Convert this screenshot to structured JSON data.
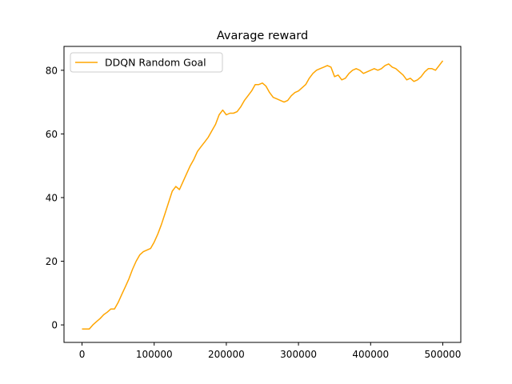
{
  "chart_data": {
    "type": "line",
    "title": "Avarage reward",
    "xlabel": "",
    "ylabel": "",
    "xlim": [
      -25000,
      525000
    ],
    "ylim": [
      -5.5,
      87.5
    ],
    "xticks": [
      0,
      100000,
      200000,
      300000,
      400000,
      500000
    ],
    "xtick_labels": [
      "0",
      "100000",
      "200000",
      "300000",
      "400000",
      "500000"
    ],
    "yticks": [
      0,
      20,
      40,
      60,
      80
    ],
    "ytick_labels": [
      "0",
      "20",
      "40",
      "60",
      "80"
    ],
    "grid": false,
    "legend_position": "top-left",
    "series": [
      {
        "name": "DDQN Random Goal",
        "color": "#ffa500",
        "x": [
          0,
          10000,
          15000,
          20000,
          25000,
          30000,
          35000,
          40000,
          45000,
          50000,
          55000,
          60000,
          65000,
          70000,
          75000,
          80000,
          85000,
          90000,
          95000,
          100000,
          105000,
          110000,
          115000,
          120000,
          125000,
          130000,
          135000,
          140000,
          145000,
          150000,
          155000,
          160000,
          165000,
          170000,
          175000,
          180000,
          185000,
          190000,
          195000,
          200000,
          205000,
          210000,
          215000,
          220000,
          225000,
          230000,
          235000,
          240000,
          245000,
          250000,
          255000,
          260000,
          265000,
          270000,
          275000,
          280000,
          285000,
          290000,
          295000,
          300000,
          305000,
          310000,
          315000,
          320000,
          325000,
          330000,
          335000,
          340000,
          345000,
          350000,
          355000,
          360000,
          365000,
          370000,
          375000,
          380000,
          385000,
          390000,
          395000,
          400000,
          405000,
          410000,
          415000,
          420000,
          425000,
          430000,
          435000,
          440000,
          445000,
          450000,
          455000,
          460000,
          465000,
          470000,
          475000,
          480000,
          485000,
          490000,
          495000,
          500000
        ],
        "y": [
          -1.3,
          -1.3,
          0.0,
          1.0,
          2.0,
          3.2,
          4.0,
          5.0,
          5.0,
          7.0,
          9.5,
          12.0,
          14.5,
          17.5,
          20.0,
          22.0,
          23.0,
          23.5,
          24.0,
          26.0,
          28.5,
          31.5,
          35.0,
          38.5,
          42.0,
          43.5,
          42.5,
          45.0,
          47.5,
          50.0,
          52.0,
          54.5,
          56.0,
          57.5,
          59.0,
          61.0,
          63.0,
          66.0,
          67.5,
          66.0,
          66.5,
          66.5,
          67.0,
          68.5,
          70.5,
          72.0,
          73.5,
          75.5,
          75.5,
          76.0,
          75.0,
          73.0,
          71.5,
          71.0,
          70.5,
          70.0,
          70.5,
          72.0,
          73.0,
          73.5,
          74.5,
          75.5,
          77.5,
          79.0,
          80.0,
          80.5,
          81.0,
          81.5,
          81.0,
          78.0,
          78.5,
          77.0,
          77.5,
          79.0,
          80.0,
          80.5,
          80.0,
          79.0,
          79.5,
          80.0,
          80.5,
          80.0,
          80.5,
          81.5,
          82.0,
          81.0,
          80.5,
          79.5,
          78.5,
          77.0,
          77.5,
          76.5,
          77.0,
          78.0,
          79.5,
          80.5,
          80.5,
          80.0,
          81.5,
          83.0
        ]
      }
    ]
  }
}
